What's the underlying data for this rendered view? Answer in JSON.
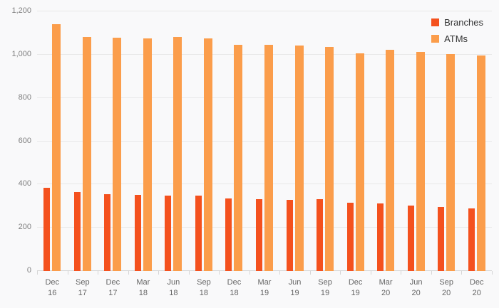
{
  "chart_data": {
    "type": "bar",
    "title": "",
    "categories": [
      "Dec 16",
      "Sep 17",
      "Dec 17",
      "Mar 18",
      "Jun 18",
      "Sep 18",
      "Dec 18",
      "Mar 19",
      "Jun 19",
      "Sep 19",
      "Dec 19",
      "Mar 20",
      "Jun 20",
      "Sep 20",
      "Dec 20"
    ],
    "series": [
      {
        "name": "Branches",
        "color": "#f4511e",
        "values": [
          385,
          366,
          356,
          352,
          349,
          349,
          336,
          333,
          329,
          331,
          316,
          313,
          304,
          296,
          288
        ]
      },
      {
        "name": "ATMs",
        "color": "#fb9d4b",
        "values": [
          1142,
          1083,
          1077,
          1076,
          1082,
          1076,
          1047,
          1046,
          1043,
          1036,
          1007,
          1023,
          1013,
          1004,
          996
        ]
      }
    ],
    "ylim": [
      0,
      1200
    ],
    "ytick_step": 200,
    "ytick_labels": [
      "0",
      "200",
      "400",
      "600",
      "800",
      "1,000",
      "1,200"
    ],
    "grid": true,
    "legend_position": "top-right",
    "background_color": "#f9f9fa",
    "gridline_color": "#e8e8e8",
    "axis_label_color": "#808080",
    "category_label_color": "#666666"
  }
}
